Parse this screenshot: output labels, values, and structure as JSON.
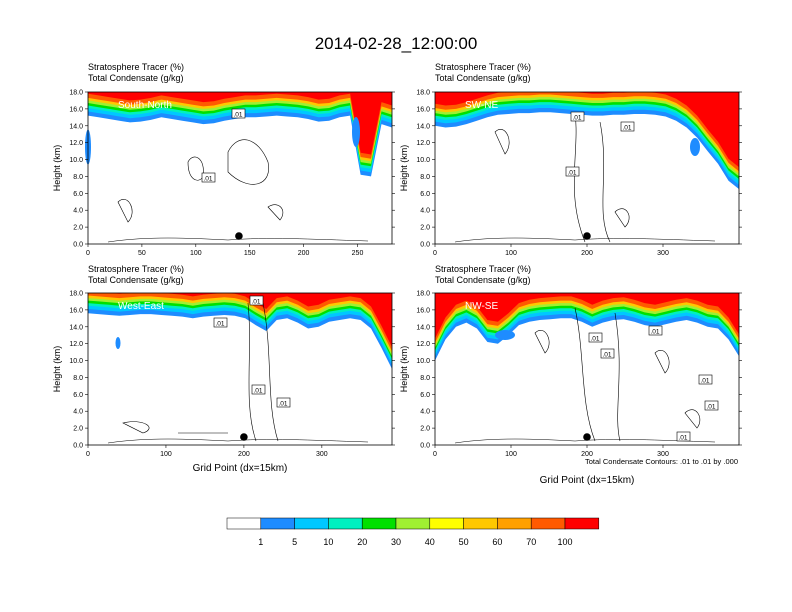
{
  "title": "2014-02-28_12:00:00",
  "colors": {
    "levels": [
      "#ffffff",
      "#1e8cff",
      "#00c8ff",
      "#00f0c0",
      "#00e000",
      "#a0f032",
      "#ffff00",
      "#ffc800",
      "#ffa000",
      "#ff5a00",
      "#ff0000"
    ],
    "contour": "#000000"
  },
  "colorbar": {
    "labels": [
      "1",
      "5",
      "10",
      "20",
      "30",
      "40",
      "50",
      "60",
      "70",
      "100"
    ]
  },
  "contour_note": "Total Condensate Contours: .01 to .01 by .000",
  "chart_data": [
    {
      "type": "heatmap",
      "panel_label": "South-North",
      "title_lines": [
        "Stratosphere Tracer   (%)",
        "Total Condensate   (g/kg)"
      ],
      "ylabel": "Height (km)",
      "xlabel": "",
      "xlim": [
        0,
        282
      ],
      "ylim": [
        0,
        18
      ],
      "xticks": [
        "0",
        "50",
        "100",
        "150",
        "200",
        "250"
      ],
      "yticks": [
        "0.0",
        "2.0",
        "4.0",
        "6.0",
        "8.0",
        "10.0",
        "12.0",
        "14.0",
        "16.0",
        "18.0"
      ],
      "contour_labels": [
        ".01",
        ".01"
      ],
      "marker_x": 140,
      "tracer_base_km": [
        15.2,
        15.0,
        14.8,
        14.6,
        14.4,
        14.5,
        14.7,
        15.0,
        14.8,
        14.6,
        14.4,
        14.2,
        14.3,
        14.6,
        14.8,
        15.0,
        15.0,
        15.1,
        15.2,
        15.1,
        15.0,
        14.8,
        14.5,
        14.6,
        15.0,
        15.2,
        8.2,
        8.0,
        14.2,
        13.8
      ]
    },
    {
      "type": "heatmap",
      "panel_label": "SW-NE",
      "title_lines": [
        "Stratosphere Tracer   (%)",
        "Total Condensate   (g/kg)"
      ],
      "ylabel": "Height (km)",
      "xlabel": "",
      "xlim": [
        0,
        400
      ],
      "ylim": [
        0,
        18
      ],
      "xticks": [
        "0",
        "100",
        "200",
        "300"
      ],
      "yticks": [
        "0.0",
        "2.0",
        "4.0",
        "6.0",
        "8.0",
        "10.0",
        "12.0",
        "14.0",
        "16.0",
        "18.0"
      ],
      "contour_labels": [
        ".01",
        ".01",
        ".01"
      ],
      "marker_x": 200,
      "tracer_base_km": [
        14.0,
        13.8,
        13.9,
        14.2,
        14.6,
        15.0,
        15.3,
        15.4,
        15.5,
        15.5,
        15.6,
        15.6,
        15.5,
        15.4,
        15.3,
        15.2,
        15.2,
        15.3,
        15.3,
        15.4,
        15.4,
        15.3,
        15.1,
        14.6,
        13.8,
        12.6,
        11.0,
        9.5,
        7.5,
        6.5
      ]
    },
    {
      "type": "heatmap",
      "panel_label": "West-East",
      "title_lines": [
        "Stratosphere Tracer   (%)",
        "Total Condensate   (g/kg)"
      ],
      "ylabel": "Height (km)",
      "xlabel": "Grid Point (dx=15km)",
      "xlim": [
        0,
        390
      ],
      "ylim": [
        0,
        18
      ],
      "xticks": [
        "0",
        "100",
        "200",
        "300"
      ],
      "yticks": [
        "0.0",
        "2.0",
        "4.0",
        "6.0",
        "8.0",
        "10.0",
        "12.0",
        "14.0",
        "16.0",
        "18.0"
      ],
      "contour_labels": [
        ".01",
        ".01",
        ".01",
        ".01"
      ],
      "marker_x": 200,
      "tracer_base_km": [
        15.6,
        15.5,
        15.4,
        15.3,
        15.4,
        15.5,
        15.5,
        15.4,
        15.3,
        15.2,
        15.0,
        15.2,
        15.3,
        15.4,
        15.3,
        15.0,
        14.2,
        13.5,
        14.8,
        15.0,
        14.5,
        13.8,
        14.0,
        14.6,
        14.8,
        15.0,
        14.8,
        13.8,
        11.5,
        9.0
      ]
    },
    {
      "type": "heatmap",
      "panel_label": "NW-SE",
      "title_lines": [
        "Stratosphere Tracer   (%)",
        "Total Condensate   (g/kg)"
      ],
      "ylabel": "Height (km)",
      "xlabel": "Grid Point (dx=15km)",
      "xlim": [
        0,
        400
      ],
      "ylim": [
        0,
        18
      ],
      "xticks": [
        "0",
        "100",
        "200",
        "300"
      ],
      "yticks": [
        "0.0",
        "2.0",
        "4.0",
        "6.0",
        "8.0",
        "10.0",
        "12.0",
        "14.0",
        "16.0",
        "18.0"
      ],
      "contour_labels": [
        ".01",
        ".01",
        ".01",
        ".01",
        ".01",
        ".01"
      ],
      "marker_x": 200,
      "tracer_base_km": [
        10.0,
        12.5,
        14.0,
        14.5,
        13.8,
        12.2,
        12.0,
        13.0,
        14.2,
        14.6,
        14.8,
        14.9,
        15.0,
        15.0,
        14.6,
        14.0,
        14.5,
        14.8,
        14.9,
        14.6,
        14.2,
        14.0,
        14.3,
        14.6,
        14.8,
        14.5,
        14.0,
        13.8,
        12.5,
        10.5
      ]
    }
  ]
}
